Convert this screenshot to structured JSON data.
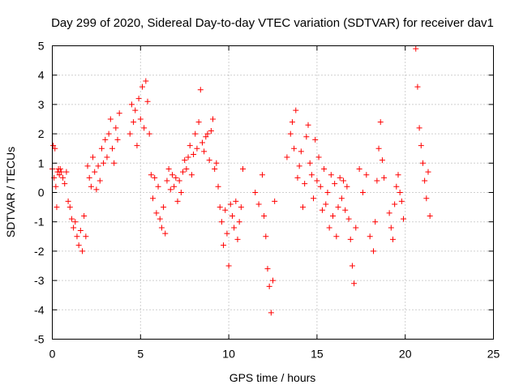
{
  "chart_data": {
    "type": "scatter",
    "title": "Day 299 of 2020, Sidereal Day-to-day VTEC variation (SDTVAR) for receiver dav1",
    "xlabel": "GPS time / hours",
    "ylabel": "SDTVAR / TECUs",
    "xlim": [
      0,
      25
    ],
    "ylim": [
      -5,
      5
    ],
    "xticks": [
      0,
      5,
      10,
      15,
      20,
      25
    ],
    "yticks": [
      -5,
      -4,
      -3,
      -2,
      -1,
      0,
      1,
      2,
      3,
      4,
      5
    ],
    "grid": true,
    "marker": "+",
    "color": "#ff0000",
    "series": [
      {
        "name": "SDTVAR",
        "x": [
          0.0,
          0.05,
          0.1,
          0.15,
          0.2,
          0.25,
          0.3,
          0.35,
          0.4,
          0.45,
          0.5,
          0.6,
          0.7,
          0.8,
          0.9,
          1.0,
          1.1,
          1.2,
          1.3,
          1.4,
          1.5,
          1.6,
          1.7,
          1.8,
          1.9,
          2.0,
          2.1,
          2.2,
          2.3,
          2.4,
          2.5,
          2.6,
          2.7,
          2.8,
          2.9,
          3.0,
          3.1,
          3.2,
          3.3,
          3.4,
          3.5,
          3.6,
          3.7,
          3.8,
          4.4,
          4.5,
          4.6,
          4.7,
          4.8,
          4.9,
          5.0,
          5.1,
          5.2,
          5.3,
          5.4,
          5.5,
          5.6,
          5.7,
          5.8,
          5.9,
          6.0,
          6.1,
          6.2,
          6.3,
          6.4,
          6.5,
          6.6,
          6.7,
          6.8,
          6.9,
          7.0,
          7.1,
          7.2,
          7.3,
          7.4,
          7.5,
          7.6,
          7.7,
          7.8,
          7.9,
          8.0,
          8.1,
          8.2,
          8.3,
          8.4,
          8.5,
          8.6,
          8.7,
          8.8,
          8.9,
          9.0,
          9.1,
          9.2,
          9.3,
          9.4,
          9.5,
          9.6,
          9.7,
          9.8,
          9.9,
          10.0,
          10.1,
          10.2,
          10.3,
          10.4,
          10.5,
          10.6,
          10.7,
          10.8,
          11.5,
          11.7,
          11.9,
          12.0,
          12.1,
          12.2,
          12.3,
          12.4,
          12.5,
          12.6,
          13.3,
          13.5,
          13.6,
          13.7,
          13.8,
          13.9,
          14.0,
          14.1,
          14.2,
          14.3,
          14.4,
          14.5,
          14.6,
          14.7,
          14.8,
          14.9,
          15.0,
          15.1,
          15.2,
          15.3,
          15.4,
          15.5,
          15.6,
          15.7,
          15.8,
          15.9,
          16.0,
          16.1,
          16.2,
          16.3,
          16.4,
          16.5,
          16.6,
          16.7,
          16.8,
          16.9,
          17.0,
          17.1,
          17.2,
          17.4,
          17.6,
          17.8,
          18.0,
          18.2,
          18.3,
          18.4,
          18.5,
          18.6,
          18.7,
          18.8,
          19.1,
          19.2,
          19.3,
          19.4,
          19.5,
          19.6,
          19.7,
          19.8,
          19.9,
          20.6,
          20.7,
          20.8,
          20.9,
          21.0,
          21.1,
          21.2,
          21.3,
          21.4
        ],
        "y": [
          0.8,
          1.6,
          0.5,
          1.5,
          0.2,
          -0.5,
          0.7,
          0.8,
          0.6,
          0.8,
          0.7,
          0.5,
          0.3,
          0.7,
          -0.3,
          -0.5,
          -0.9,
          -1.2,
          -1.0,
          -1.5,
          -1.8,
          -1.3,
          -2.0,
          -0.8,
          -1.5,
          0.9,
          0.5,
          0.2,
          1.2,
          0.7,
          0.1,
          0.9,
          0.4,
          1.5,
          1.0,
          1.8,
          1.2,
          2.0,
          2.5,
          1.5,
          1.0,
          2.2,
          1.8,
          2.7,
          2.0,
          3.0,
          2.4,
          2.8,
          1.6,
          3.2,
          2.5,
          3.6,
          2.2,
          3.8,
          3.1,
          2.0,
          0.6,
          -0.2,
          0.5,
          -0.7,
          0.2,
          -0.9,
          -1.2,
          -0.5,
          -1.4,
          0.4,
          0.8,
          0.1,
          0.6,
          0.2,
          0.5,
          -0.3,
          0.4,
          0.0,
          0.7,
          1.1,
          0.8,
          1.2,
          1.6,
          0.6,
          1.3,
          2.0,
          1.5,
          2.4,
          3.5,
          1.7,
          1.4,
          1.9,
          2.0,
          1.1,
          2.1,
          2.5,
          0.8,
          1.0,
          0.2,
          -0.5,
          -1.0,
          -1.8,
          -0.6,
          -1.4,
          -2.5,
          -0.4,
          -0.8,
          -1.2,
          -0.3,
          -1.6,
          -1.0,
          -0.5,
          0.8,
          0.0,
          -0.4,
          0.6,
          -0.8,
          -1.5,
          -2.6,
          -3.2,
          -4.1,
          -3.0,
          -0.3,
          1.2,
          2.0,
          2.4,
          1.5,
          2.8,
          0.5,
          0.9,
          1.4,
          -0.5,
          0.3,
          1.9,
          2.3,
          1.0,
          0.6,
          -0.2,
          1.8,
          0.4,
          1.2,
          0.2,
          -0.6,
          0.8,
          -0.4,
          0.0,
          -1.2,
          0.6,
          -0.8,
          0.3,
          -1.5,
          -0.5,
          0.5,
          -0.2,
          0.4,
          -0.6,
          0.2,
          -0.9,
          -1.6,
          -2.5,
          -3.1,
          -1.2,
          0.8,
          0.0,
          0.6,
          -1.5,
          -2.0,
          -1.0,
          0.4,
          1.5,
          2.4,
          1.1,
          0.5,
          -0.7,
          -1.2,
          -1.6,
          -0.4,
          0.2,
          0.6,
          0.0,
          -0.3,
          -0.9,
          4.9,
          3.6,
          2.2,
          1.6,
          1.0,
          0.4,
          -0.2,
          0.7,
          -0.8
        ]
      }
    ]
  }
}
